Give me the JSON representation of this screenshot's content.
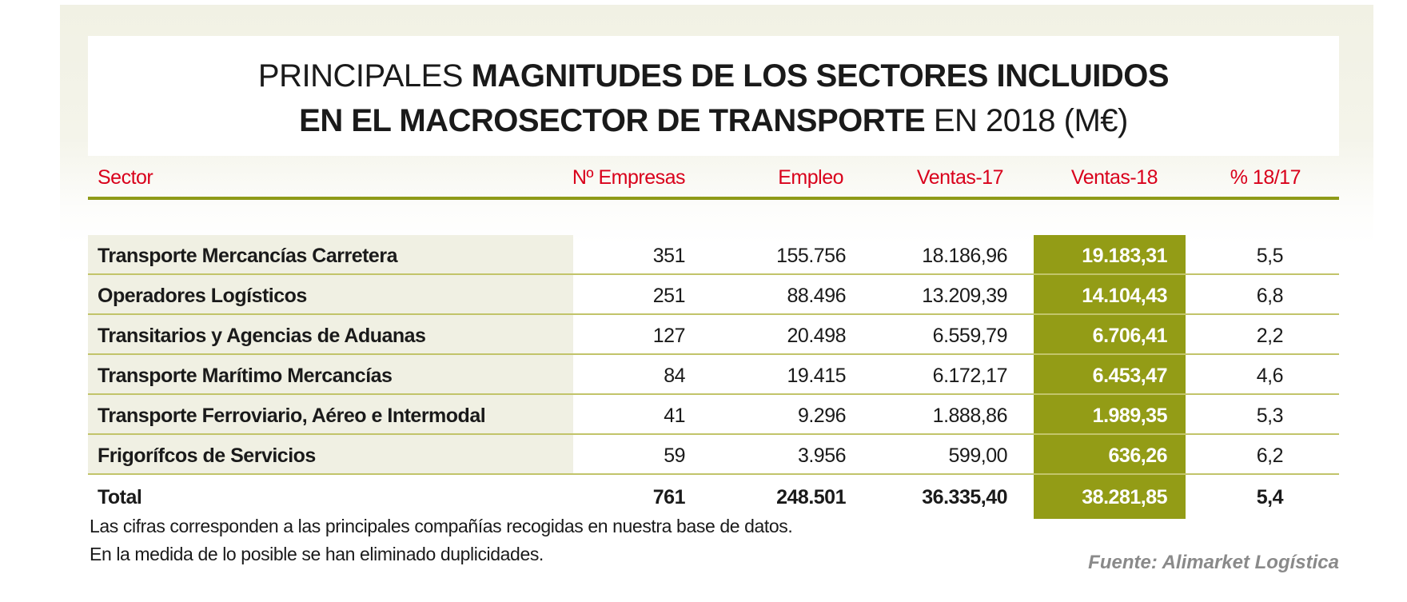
{
  "title": {
    "line1_light": "PRINCIPALES ",
    "line1_bold": "MAGNITUDES DE LOS SECTORES INCLUIDOS",
    "line2_bold": "EN EL MACROSECTOR DE TRANSPORTE",
    "line2_light": " EN 2018 (M€)"
  },
  "headers": [
    "Sector",
    "Nº Empresas",
    "Empleo",
    "Ventas-17",
    "Ventas-18",
    "% 18/17"
  ],
  "rows": [
    [
      "Transporte Mercancías Carretera",
      "351",
      "155.756",
      "18.186,96",
      "19.183,31",
      "5,5"
    ],
    [
      "Operadores Logísticos",
      "251",
      "88.496",
      "13.209,39",
      "14.104,43",
      "6,8"
    ],
    [
      "Transitarios y Agencias de Aduanas",
      "127",
      "20.498",
      "6.559,79",
      "6.706,41",
      "2,2"
    ],
    [
      "Transporte Marítimo Mercancías",
      "84",
      "19.415",
      "6.172,17",
      "6.453,47",
      "4,6"
    ],
    [
      "Transporte Ferroviario, Aéreo e Intermodal",
      "41",
      "9.296",
      "1.888,86",
      "1.989,35",
      "5,3"
    ],
    [
      "Frigorífcos de Servicios",
      "59",
      "3.956",
      "599,00",
      "636,26",
      "6,2"
    ]
  ],
  "total": [
    "Total",
    "761",
    "248.501",
    "36.335,40",
    "38.281,85",
    "5,4"
  ],
  "notes": [
    "Las cifras corresponden a las principales compañías recogidas en nuestra base de datos.",
    "En la medida de lo posible se han eliminado duplicidades."
  ],
  "source": "Fuente: Alimarket Logística",
  "colors": {
    "header_text": "#d9001b",
    "accent_olive": "#939c16",
    "sector_bg": "#f0f0e3"
  }
}
